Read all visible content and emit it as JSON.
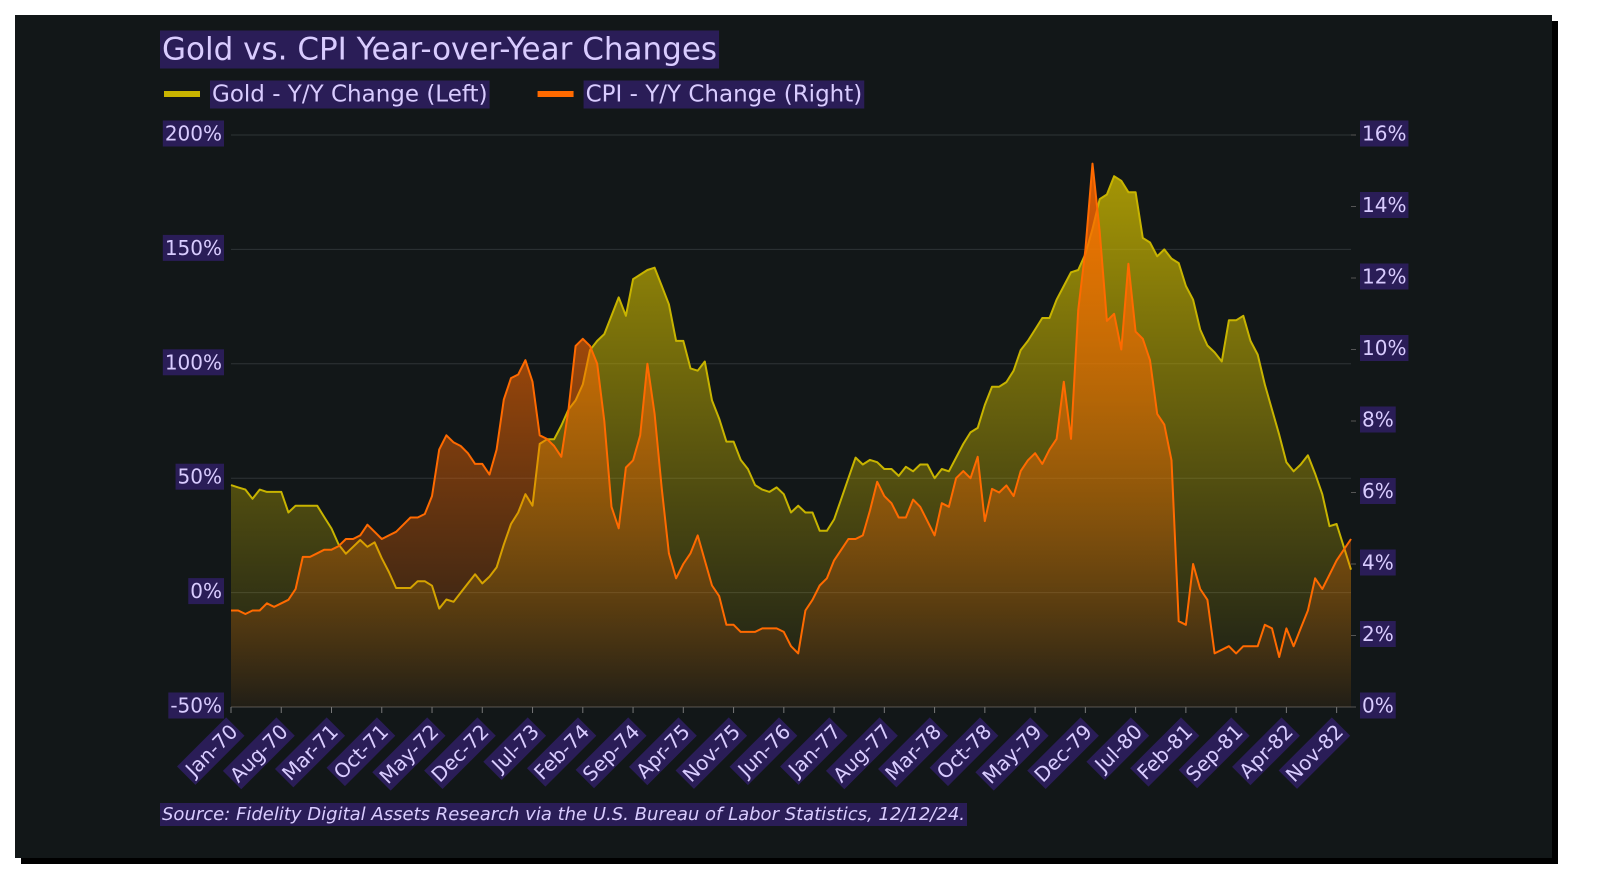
{
  "chart_data": {
    "type": "area",
    "title": "Gold vs. CPI Year-over-Year Changes",
    "source": "Source: Fidelity Digital Assets Research via the U.S. Bureau of Labor Statistics, 12/12/24.",
    "categories": [
      "Jan-70",
      null,
      null,
      null,
      null,
      null,
      null,
      "Aug-70",
      null,
      null,
      null,
      null,
      null,
      null,
      "Mar-71",
      null,
      null,
      null,
      null,
      null,
      null,
      "Oct-71",
      null,
      null,
      null,
      null,
      null,
      null,
      "May-72",
      null,
      null,
      null,
      null,
      null,
      null,
      "Dec-72",
      null,
      null,
      null,
      null,
      null,
      null,
      "Jul-73",
      null,
      null,
      null,
      null,
      null,
      null,
      "Feb-74",
      null,
      null,
      null,
      null,
      null,
      null,
      "Sep-74",
      null,
      null,
      null,
      null,
      null,
      null,
      "Apr-75",
      null,
      null,
      null,
      null,
      null,
      null,
      "Nov-75",
      null,
      null,
      null,
      null,
      null,
      null,
      "Jun-76",
      null,
      null,
      null,
      null,
      null,
      null,
      "Jan-77",
      null,
      null,
      null,
      null,
      null,
      null,
      "Aug-77",
      null,
      null,
      null,
      null,
      null,
      null,
      "Mar-78",
      null,
      null,
      null,
      null,
      null,
      null,
      "Oct-78",
      null,
      null,
      null,
      null,
      null,
      null,
      "May-79",
      null,
      null,
      null,
      null,
      null,
      null,
      "Dec-79",
      null,
      null,
      null,
      null,
      null,
      null,
      "Jul-80",
      null,
      null,
      null,
      null,
      null,
      null,
      "Feb-81",
      null,
      null,
      null,
      null,
      null,
      null,
      "Sep-81",
      null,
      null,
      null,
      null,
      null,
      null,
      "Apr-82",
      null,
      null,
      null,
      null,
      null,
      null,
      "Nov-82",
      null,
      null
    ],
    "series": [
      {
        "name": "Gold - Y/Y Change (Left)",
        "color": "#c8b400",
        "axis": "y",
        "values": [
          47,
          46,
          45,
          41,
          45,
          44,
          44,
          44,
          35,
          38,
          38,
          38,
          38,
          33,
          28,
          21,
          17,
          20,
          23,
          20,
          22,
          15,
          9,
          2,
          2,
          2,
          5,
          5,
          3,
          -7,
          -3,
          -4,
          0,
          4,
          8,
          4,
          7,
          11,
          21,
          30,
          35,
          43,
          38,
          65,
          67,
          67,
          73,
          80,
          84,
          91,
          106,
          110,
          113,
          121,
          129,
          121,
          137,
          139,
          141,
          142,
          134,
          126,
          110,
          110,
          98,
          97,
          101,
          84,
          76,
          66,
          66,
          58,
          54,
          47,
          45,
          44,
          46,
          43,
          35,
          38,
          35,
          35,
          27,
          27,
          32,
          41,
          50,
          59,
          56,
          58,
          57,
          54,
          54,
          51,
          55,
          53,
          56,
          56,
          50,
          54,
          53,
          59,
          65,
          70,
          72,
          82,
          90,
          90,
          92,
          97,
          106,
          110,
          115,
          120,
          120,
          128,
          134,
          140,
          141,
          148,
          159,
          172,
          174,
          182,
          180,
          175,
          175,
          155,
          153,
          147,
          150,
          146,
          144,
          134,
          128,
          115,
          108,
          105,
          101,
          119,
          119,
          121,
          110,
          104,
          91,
          80,
          69,
          57,
          53,
          56,
          60,
          52,
          43,
          29,
          30,
          20,
          10
        ]
      },
      {
        "name": "CPI - Y/Y Change (Right)",
        "color": "#ff6a00",
        "axis": "y2",
        "values": [
          2.7,
          2.7,
          2.6,
          2.7,
          2.7,
          2.9,
          2.8,
          2.9,
          3.0,
          3.3,
          4.2,
          4.2,
          4.3,
          4.4,
          4.4,
          4.5,
          4.7,
          4.7,
          4.8,
          5.1,
          4.9,
          4.7,
          4.8,
          4.9,
          5.1,
          5.3,
          5.3,
          5.4,
          5.9,
          7.2,
          7.6,
          7.4,
          7.3,
          7.1,
          6.8,
          6.8,
          6.5,
          7.2,
          8.6,
          9.2,
          9.3,
          9.7,
          9.1,
          7.6,
          7.5,
          7.3,
          7.0,
          8.3,
          10.1,
          10.3,
          10.1,
          9.6,
          8.0,
          5.6,
          5.0,
          6.7,
          6.9,
          7.6,
          9.6,
          8.2,
          6.1,
          4.3,
          3.6,
          4.0,
          4.3,
          4.8,
          4.1,
          3.4,
          3.1,
          2.3,
          2.3,
          2.1,
          2.1,
          2.1,
          2.2,
          2.2,
          2.2,
          2.1,
          1.7,
          1.5,
          2.7,
          3.0,
          3.4,
          3.6,
          4.1,
          4.4,
          4.7,
          4.7,
          4.8,
          5.5,
          6.3,
          5.9,
          5.7,
          5.3,
          5.3,
          5.8,
          5.6,
          5.2,
          4.8,
          5.7,
          5.6,
          6.4,
          6.6,
          6.4,
          7.0,
          5.2,
          6.1,
          6.0,
          6.2,
          5.9,
          6.6,
          6.9,
          7.1,
          6.8,
          7.2,
          7.5,
          9.1,
          7.5,
          11.1,
          12.8,
          15.2,
          13.3,
          10.8,
          11.0,
          10.0,
          12.4,
          10.5,
          10.3,
          9.7,
          8.2,
          7.9,
          6.9,
          2.4,
          2.3,
          4.0,
          3.3,
          3.0,
          1.5,
          1.6,
          1.7,
          1.5,
          1.7,
          1.7,
          1.7,
          2.3,
          2.2,
          1.4,
          2.2,
          1.7,
          2.2,
          2.7,
          3.6,
          3.3,
          3.7,
          4.1,
          4.4,
          4.7
        ]
      }
    ],
    "ylim": [
      -50,
      200
    ],
    "yticks": [
      {
        "value": -50,
        "label": "-50%"
      },
      {
        "value": 0,
        "label": "0%"
      },
      {
        "value": 50,
        "label": "50%"
      },
      {
        "value": 100,
        "label": "100%"
      },
      {
        "value": 150,
        "label": "150%"
      },
      {
        "value": 200,
        "label": "200%"
      }
    ],
    "y2lim": [
      0,
      16
    ],
    "y2ticks": [
      {
        "value": 0,
        "label": "0%"
      },
      {
        "value": 2,
        "label": "2%"
      },
      {
        "value": 4,
        "label": "4%"
      },
      {
        "value": 6,
        "label": "6%"
      },
      {
        "value": 8,
        "label": "8%"
      },
      {
        "value": 10,
        "label": "10%"
      },
      {
        "value": 12,
        "label": "12%"
      },
      {
        "value": 14,
        "label": "14%"
      },
      {
        "value": 16,
        "label": "16%"
      }
    ],
    "grid": true,
    "legend": "top-left"
  }
}
